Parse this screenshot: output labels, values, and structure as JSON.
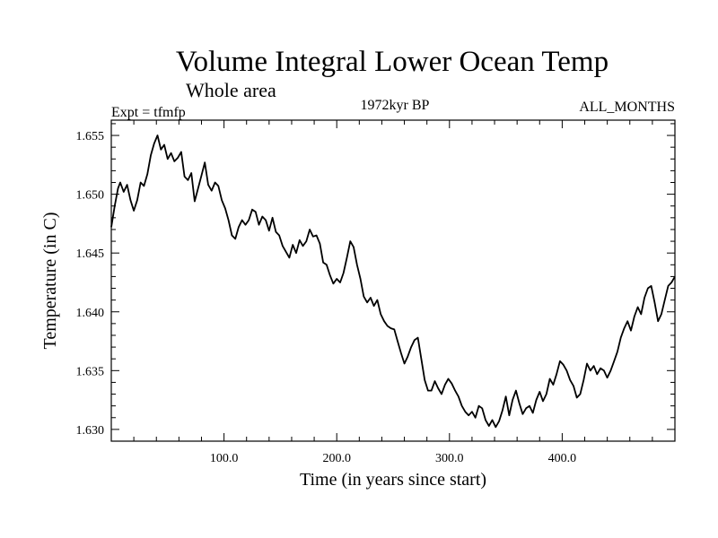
{
  "chart_data": {
    "type": "line",
    "title": "Volume Integral Lower Ocean Temp",
    "subtitle": "Whole area",
    "annotations": {
      "left": "Expt = tfmfp",
      "center": "1972kyr BP",
      "right": "ALL_MONTHS"
    },
    "xlabel": "Time (in years since start)",
    "ylabel": "Temperature (in C)",
    "xlim": [
      0,
      500
    ],
    "ylim": [
      1.629,
      1.6563
    ],
    "xticks": [
      {
        "value": 100,
        "label": "100.0"
      },
      {
        "value": 200,
        "label": "200.0"
      },
      {
        "value": 300,
        "label": "300.0"
      },
      {
        "value": 400,
        "label": "400.0"
      }
    ],
    "yticks": [
      {
        "value": 1.63,
        "label": "1.630"
      },
      {
        "value": 1.635,
        "label": "1.635"
      },
      {
        "value": 1.64,
        "label": "1.640"
      },
      {
        "value": 1.645,
        "label": "1.645"
      },
      {
        "value": 1.65,
        "label": "1.650"
      },
      {
        "value": 1.655,
        "label": "1.655"
      }
    ],
    "series": [
      {
        "name": "tfmfp",
        "color": "#000000",
        "points": [
          [
            0,
            1.6472
          ],
          [
            3,
            1.649
          ],
          [
            6,
            1.6505
          ],
          [
            8,
            1.651
          ],
          [
            11,
            1.6502
          ],
          [
            14,
            1.6508
          ],
          [
            17,
            1.6495
          ],
          [
            20,
            1.6486
          ],
          [
            23,
            1.6495
          ],
          [
            26,
            1.651
          ],
          [
            29,
            1.6507
          ],
          [
            32,
            1.6517
          ],
          [
            35,
            1.6533
          ],
          [
            38,
            1.6543
          ],
          [
            41,
            1.655
          ],
          [
            44,
            1.6538
          ],
          [
            47,
            1.6542
          ],
          [
            50,
            1.653
          ],
          [
            53,
            1.6535
          ],
          [
            56,
            1.6528
          ],
          [
            59,
            1.6531
          ],
          [
            62,
            1.6536
          ],
          [
            65,
            1.6515
          ],
          [
            68,
            1.6512
          ],
          [
            71,
            1.6518
          ],
          [
            74,
            1.6494
          ],
          [
            77,
            1.6505
          ],
          [
            80,
            1.6516
          ],
          [
            83,
            1.6527
          ],
          [
            86,
            1.6508
          ],
          [
            89,
            1.6503
          ],
          [
            92,
            1.651
          ],
          [
            95,
            1.6507
          ],
          [
            98,
            1.6495
          ],
          [
            101,
            1.6488
          ],
          [
            104,
            1.6478
          ],
          [
            107,
            1.6465
          ],
          [
            110,
            1.6462
          ],
          [
            113,
            1.6472
          ],
          [
            116,
            1.6478
          ],
          [
            119,
            1.6474
          ],
          [
            122,
            1.6478
          ],
          [
            125,
            1.6487
          ],
          [
            128,
            1.6485
          ],
          [
            131,
            1.6474
          ],
          [
            134,
            1.6481
          ],
          [
            137,
            1.6478
          ],
          [
            140,
            1.6469
          ],
          [
            143,
            1.648
          ],
          [
            146,
            1.6468
          ],
          [
            149,
            1.6465
          ],
          [
            152,
            1.6456
          ],
          [
            155,
            1.6451
          ],
          [
            158,
            1.6446
          ],
          [
            161,
            1.6457
          ],
          [
            164,
            1.645
          ],
          [
            167,
            1.6461
          ],
          [
            170,
            1.6456
          ],
          [
            173,
            1.646
          ],
          [
            176,
            1.647
          ],
          [
            179,
            1.6464
          ],
          [
            182,
            1.6465
          ],
          [
            185,
            1.6458
          ],
          [
            188,
            1.6442
          ],
          [
            191,
            1.644
          ],
          [
            194,
            1.6431
          ],
          [
            197,
            1.6424
          ],
          [
            200,
            1.6428
          ],
          [
            203,
            1.6425
          ],
          [
            206,
            1.6433
          ],
          [
            209,
            1.6446
          ],
          [
            212,
            1.646
          ],
          [
            215,
            1.6455
          ],
          [
            218,
            1.644
          ],
          [
            221,
            1.6428
          ],
          [
            224,
            1.6413
          ],
          [
            227,
            1.6408
          ],
          [
            230,
            1.6412
          ],
          [
            233,
            1.6405
          ],
          [
            236,
            1.641
          ],
          [
            239,
            1.6398
          ],
          [
            242,
            1.6392
          ],
          [
            245,
            1.6388
          ],
          [
            248,
            1.6386
          ],
          [
            251,
            1.6385
          ],
          [
            254,
            1.6375
          ],
          [
            257,
            1.6365
          ],
          [
            260,
            1.6356
          ],
          [
            263,
            1.6362
          ],
          [
            266,
            1.637
          ],
          [
            269,
            1.6376
          ],
          [
            272,
            1.6378
          ],
          [
            275,
            1.636
          ],
          [
            278,
            1.6342
          ],
          [
            281,
            1.6333
          ],
          [
            284,
            1.6333
          ],
          [
            287,
            1.6341
          ],
          [
            290,
            1.6335
          ],
          [
            293,
            1.633
          ],
          [
            296,
            1.6338
          ],
          [
            299,
            1.6343
          ],
          [
            302,
            1.6339
          ],
          [
            305,
            1.6333
          ],
          [
            308,
            1.6328
          ],
          [
            311,
            1.632
          ],
          [
            314,
            1.6315
          ],
          [
            317,
            1.6312
          ],
          [
            320,
            1.6315
          ],
          [
            323,
            1.631
          ],
          [
            326,
            1.632
          ],
          [
            329,
            1.6318
          ],
          [
            332,
            1.6308
          ],
          [
            335,
            1.6303
          ],
          [
            338,
            1.6308
          ],
          [
            341,
            1.6302
          ],
          [
            344,
            1.6307
          ],
          [
            347,
            1.6316
          ],
          [
            350,
            1.6328
          ],
          [
            353,
            1.6312
          ],
          [
            356,
            1.6325
          ],
          [
            359,
            1.6333
          ],
          [
            362,
            1.6322
          ],
          [
            365,
            1.6313
          ],
          [
            368,
            1.6318
          ],
          [
            371,
            1.632
          ],
          [
            374,
            1.6314
          ],
          [
            377,
            1.6325
          ],
          [
            380,
            1.6332
          ],
          [
            383,
            1.6324
          ],
          [
            386,
            1.633
          ],
          [
            389,
            1.6343
          ],
          [
            392,
            1.6338
          ],
          [
            395,
            1.6347
          ],
          [
            398,
            1.6358
          ],
          [
            401,
            1.6355
          ],
          [
            404,
            1.635
          ],
          [
            407,
            1.6342
          ],
          [
            410,
            1.6337
          ],
          [
            413,
            1.6327
          ],
          [
            416,
            1.633
          ],
          [
            419,
            1.6342
          ],
          [
            422,
            1.6356
          ],
          [
            425,
            1.635
          ],
          [
            428,
            1.6354
          ],
          [
            431,
            1.6347
          ],
          [
            434,
            1.6352
          ],
          [
            437,
            1.635
          ],
          [
            440,
            1.6344
          ],
          [
            443,
            1.635
          ],
          [
            446,
            1.6358
          ],
          [
            449,
            1.6366
          ],
          [
            452,
            1.6378
          ],
          [
            455,
            1.6386
          ],
          [
            458,
            1.6392
          ],
          [
            461,
            1.6384
          ],
          [
            464,
            1.6396
          ],
          [
            467,
            1.6404
          ],
          [
            470,
            1.6398
          ],
          [
            473,
            1.6412
          ],
          [
            476,
            1.642
          ],
          [
            479,
            1.6422
          ],
          [
            482,
            1.6408
          ],
          [
            485,
            1.6392
          ],
          [
            488,
            1.6398
          ],
          [
            491,
            1.641
          ],
          [
            494,
            1.6422
          ],
          [
            497,
            1.6425
          ],
          [
            500,
            1.643
          ]
        ]
      }
    ]
  }
}
